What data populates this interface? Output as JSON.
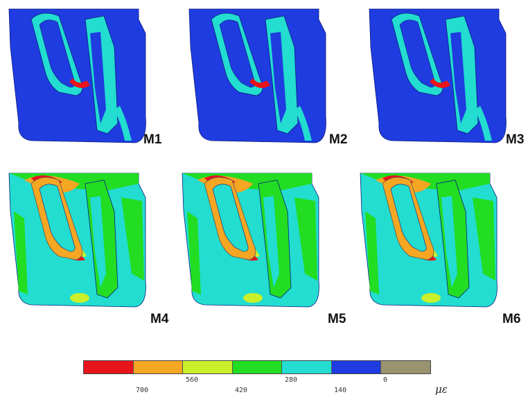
{
  "models": [
    {
      "label": "M1",
      "stress": "low"
    },
    {
      "label": "M2",
      "stress": "low"
    },
    {
      "label": "M3",
      "stress": "low"
    },
    {
      "label": "M4",
      "stress": "high"
    },
    {
      "label": "M5",
      "stress": "high"
    },
    {
      "label": "M6",
      "stress": "high"
    }
  ],
  "legend": {
    "colors": [
      "#e8141b",
      "#f5a623",
      "#c9f02a",
      "#22dd22",
      "#22ddd0",
      "#1f3ce0",
      "#9a9370"
    ],
    "ticks_upper": [
      "560",
      "280",
      "0"
    ],
    "ticks_lower": [
      "700",
      "420",
      "140"
    ],
    "unit": "με"
  }
}
